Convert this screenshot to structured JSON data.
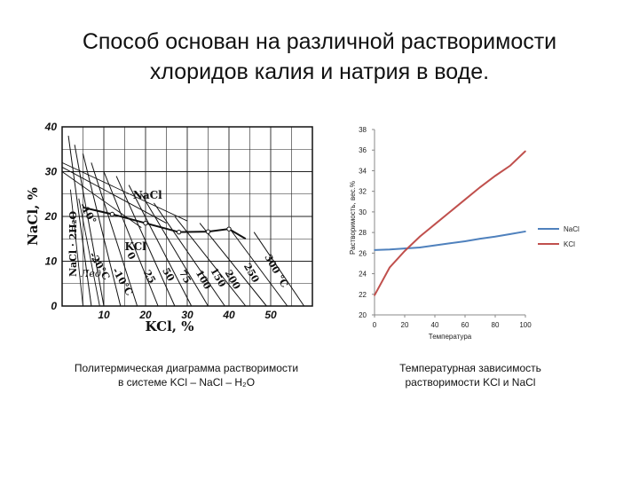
{
  "slide": {
    "title_line1": "Способ основан на различной растворимости",
    "title_line2": "хлоридов калия и натрия в воде.",
    "caption_left_line1": "Политермическая диаграмма растворимости",
    "caption_left_line2": "в системе KCl – NaCl – H₂O",
    "caption_right_line1": "Температурная зависимость",
    "caption_right_line2": "растворимости  KCl  и NaCl"
  },
  "chart_data": [
    {
      "type": "diagram",
      "xlabel": "KCl, %",
      "ylabel": "NaCl, %",
      "x_ticks": [
        "10",
        "20",
        "30",
        "40",
        "50"
      ],
      "y_ticks": [
        "0",
        "10",
        "20",
        "30",
        "40"
      ],
      "xlim": [
        0,
        60
      ],
      "ylim": [
        0,
        40
      ],
      "region_labels": [
        "NaCl",
        "KCl",
        "NaCl · 2H₂O",
        "Лед"
      ],
      "isotherm_labels": [
        "-10°",
        "-20°C",
        "-10°C",
        "0",
        "25",
        "50",
        "75",
        "100",
        "150",
        "200",
        "250",
        "300 °C"
      ]
    },
    {
      "type": "line",
      "xlabel": "Температура",
      "ylabel": "Растворимость, вес.%",
      "xlim": [
        0,
        100
      ],
      "ylim": [
        20,
        38
      ],
      "x_ticks": [
        0,
        20,
        40,
        60,
        80,
        100
      ],
      "y_ticks": [
        20,
        22,
        24,
        26,
        28,
        30,
        32,
        34,
        36,
        38
      ],
      "legend_position": "right",
      "series": [
        {
          "name": "NaCl",
          "color": "#4F81BD",
          "x": [
            0,
            10,
            20,
            30,
            40,
            50,
            60,
            70,
            80,
            90,
            100
          ],
          "y": [
            26.3,
            26.35,
            26.45,
            26.55,
            26.75,
            26.95,
            27.15,
            27.4,
            27.6,
            27.85,
            28.1
          ]
        },
        {
          "name": "KCl",
          "color": "#C0504D",
          "x": [
            0,
            10,
            20,
            30,
            40,
            50,
            60,
            70,
            80,
            90,
            100
          ],
          "y": [
            21.9,
            24.6,
            26.2,
            27.6,
            28.8,
            30.0,
            31.2,
            32.4,
            33.5,
            34.5,
            35.9
          ]
        }
      ]
    }
  ]
}
